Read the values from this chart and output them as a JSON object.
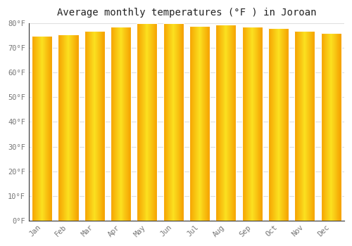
{
  "title": "Average monthly temperatures (°F ) in Joroan",
  "months": [
    "Jan",
    "Feb",
    "Mar",
    "Apr",
    "May",
    "Jun",
    "Jul",
    "Aug",
    "Sep",
    "Oct",
    "Nov",
    "Dec"
  ],
  "values": [
    75,
    75.5,
    77,
    78.5,
    80,
    80,
    79,
    79.5,
    78.5,
    78,
    77,
    76
  ],
  "bar_color_center": "#FFD740",
  "bar_color_edge": "#F5A000",
  "background_color": "#ffffff",
  "plot_bg_color": "#ffffff",
  "ylim": [
    0,
    80
  ],
  "yticks": [
    0,
    10,
    20,
    30,
    40,
    50,
    60,
    70,
    80
  ],
  "ytick_labels": [
    "0°F",
    "10°F",
    "20°F",
    "30°F",
    "40°F",
    "50°F",
    "60°F",
    "70°F",
    "80°F"
  ],
  "title_fontsize": 10,
  "tick_fontsize": 7.5,
  "grid_color": "#e0e0e0",
  "axis_color": "#555555",
  "tick_color": "#777777",
  "title_font_family": "monospace"
}
